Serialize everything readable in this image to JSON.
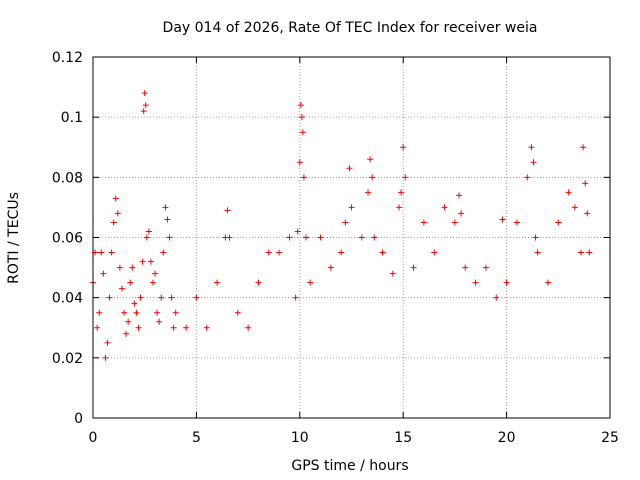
{
  "chart_data": {
    "type": "scatter",
    "title": "Day 014 of 2026, Rate Of TEC Index for receiver weia",
    "xlabel": "GPS time / hours",
    "ylabel": "ROTI / TECUs",
    "xlim": [
      0,
      25
    ],
    "ylim": [
      0,
      0.12
    ],
    "x_ticks": [
      0,
      5,
      10,
      15,
      20,
      25
    ],
    "x_tick_labels": [
      "0",
      "5",
      "10",
      "15",
      "20",
      "25"
    ],
    "y_ticks": [
      0,
      0.02,
      0.04,
      0.06,
      0.08,
      0.1,
      0.12
    ],
    "y_tick_labels": [
      "0",
      "0.02",
      "0.04",
      "0.06",
      "0.08",
      "0.1",
      "0.12"
    ],
    "grid": true,
    "marker": "+",
    "color": "#ff0000",
    "series": [
      {
        "x": [
          0.0,
          0.1,
          0.2,
          0.3,
          0.4,
          0.5,
          0.6,
          0.7,
          0.8,
          0.9,
          1.0,
          1.1,
          1.2,
          1.3,
          1.4,
          1.5,
          1.6,
          1.7,
          1.8,
          1.9,
          2.0,
          2.1,
          2.2,
          2.3,
          2.4,
          2.45,
          2.5,
          2.55,
          2.6,
          2.7,
          2.8,
          2.9,
          3.0,
          3.1,
          3.2,
          3.3,
          3.4,
          3.5,
          3.6,
          3.7,
          3.8,
          3.9,
          4.0,
          4.5,
          5.0,
          5.5,
          6.0,
          6.4,
          6.5,
          6.6,
          7.0,
          7.5,
          8.0,
          8.5,
          9.0,
          9.5,
          9.8,
          9.9,
          10.0,
          10.05,
          10.1,
          10.15,
          10.2,
          10.3,
          10.5,
          11.0,
          11.5,
          12.0,
          12.2,
          12.4,
          12.5,
          13.0,
          13.3,
          13.4,
          13.5,
          13.6,
          14.0,
          14.5,
          14.8,
          14.9,
          15.0,
          15.1,
          15.5,
          16.0,
          16.5,
          17.0,
          17.5,
          17.7,
          17.8,
          18.0,
          18.5,
          19.0,
          19.5,
          19.8,
          20.0,
          20.5,
          21.0,
          21.2,
          21.3,
          21.4,
          21.5,
          22.0,
          22.5,
          23.0,
          23.3,
          23.6,
          23.7,
          23.8,
          23.9,
          24.0
        ],
        "y": [
          0.045,
          0.055,
          0.03,
          0.035,
          0.055,
          0.048,
          0.02,
          0.025,
          0.04,
          0.055,
          0.065,
          0.073,
          0.068,
          0.05,
          0.043,
          0.035,
          0.028,
          0.032,
          0.045,
          0.05,
          0.038,
          0.035,
          0.03,
          0.04,
          0.052,
          0.102,
          0.108,
          0.104,
          0.06,
          0.062,
          0.052,
          0.045,
          0.048,
          0.035,
          0.032,
          0.04,
          0.055,
          0.07,
          0.066,
          0.06,
          0.04,
          0.03,
          0.035,
          0.03,
          0.04,
          0.03,
          0.045,
          0.06,
          0.069,
          0.06,
          0.035,
          0.03,
          0.045,
          0.055,
          0.055,
          0.06,
          0.04,
          0.062,
          0.085,
          0.104,
          0.1,
          0.095,
          0.08,
          0.06,
          0.045,
          0.06,
          0.05,
          0.055,
          0.065,
          0.083,
          0.07,
          0.06,
          0.075,
          0.086,
          0.08,
          0.06,
          0.055,
          0.048,
          0.07,
          0.075,
          0.09,
          0.08,
          0.05,
          0.065,
          0.055,
          0.07,
          0.065,
          0.074,
          0.068,
          0.05,
          0.045,
          0.05,
          0.04,
          0.066,
          0.045,
          0.065,
          0.08,
          0.09,
          0.085,
          0.06,
          0.055,
          0.045,
          0.065,
          0.075,
          0.07,
          0.055,
          0.09,
          0.078,
          0.068,
          0.055
        ]
      }
    ]
  }
}
